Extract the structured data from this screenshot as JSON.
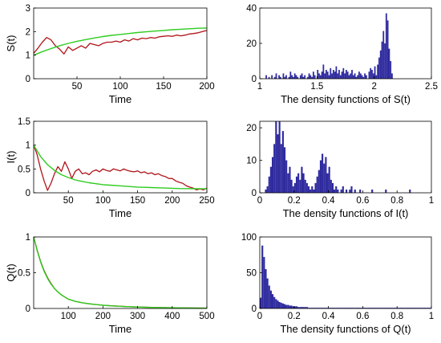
{
  "colors": {
    "path": "#b0141a",
    "mean": "#2fcc1f",
    "bar": "#2e2a9e"
  },
  "chart_data": [
    {
      "type": "line",
      "id": "S-time",
      "xlabel": "Time",
      "ylabel": "S(t)",
      "xlim": [
        0,
        200
      ],
      "ylim": [
        0,
        3
      ],
      "xticks": [
        {
          "v": 50,
          "label": "50"
        },
        {
          "v": 100,
          "label": "100"
        },
        {
          "v": 150,
          "label": "150"
        },
        {
          "v": 200,
          "label": "200"
        }
      ],
      "yticks": [
        {
          "v": 0,
          "label": "0"
        },
        {
          "v": 1,
          "label": "1"
        },
        {
          "v": 2,
          "label": "2"
        },
        {
          "v": 3,
          "label": "3"
        }
      ],
      "series": [
        {
          "role": "stochastic",
          "x": [
            0,
            5,
            10,
            15,
            20,
            25,
            30,
            35,
            40,
            45,
            50,
            55,
            60,
            65,
            70,
            75,
            80,
            85,
            90,
            95,
            100,
            105,
            110,
            115,
            120,
            125,
            130,
            135,
            140,
            145,
            150,
            155,
            160,
            165,
            170,
            175,
            180,
            185,
            190,
            195,
            200
          ],
          "y": [
            1.08,
            1.3,
            1.55,
            1.75,
            1.65,
            1.4,
            1.25,
            1.05,
            1.35,
            1.2,
            1.3,
            1.4,
            1.3,
            1.5,
            1.45,
            1.4,
            1.5,
            1.55,
            1.55,
            1.6,
            1.55,
            1.65,
            1.6,
            1.7,
            1.65,
            1.72,
            1.7,
            1.75,
            1.72,
            1.78,
            1.8,
            1.82,
            1.8,
            1.85,
            1.82,
            1.85,
            1.9,
            1.92,
            1.95,
            2.0,
            2.05
          ]
        },
        {
          "role": "deterministic",
          "x": [
            0,
            10,
            20,
            30,
            40,
            50,
            60,
            70,
            80,
            90,
            100,
            110,
            120,
            130,
            140,
            150,
            160,
            170,
            180,
            190,
            200
          ],
          "y": [
            1.0,
            1.15,
            1.28,
            1.4,
            1.5,
            1.59,
            1.66,
            1.73,
            1.79,
            1.84,
            1.88,
            1.92,
            1.96,
            1.99,
            2.02,
            2.05,
            2.08,
            2.1,
            2.12,
            2.14,
            2.15
          ]
        }
      ]
    },
    {
      "type": "bar",
      "id": "S-density",
      "xlabel": "The density functions of S(t)",
      "xlim": [
        1,
        2.5
      ],
      "ylim": [
        0,
        40
      ],
      "xticks": [
        {
          "v": 1,
          "label": "1"
        },
        {
          "v": 1.5,
          "label": "1.5"
        },
        {
          "v": 2,
          "label": "2"
        },
        {
          "v": 2.5,
          "label": "2.5"
        }
      ],
      "yticks": [
        {
          "v": 0,
          "label": "0"
        },
        {
          "v": 20,
          "label": "20"
        },
        {
          "v": 40,
          "label": "40"
        }
      ],
      "bin_start": 1.05,
      "bin_width": 0.0125,
      "values": [
        2,
        0,
        1,
        0,
        2,
        0,
        1,
        3,
        0,
        2,
        1,
        0,
        3,
        1,
        2,
        0,
        1,
        4,
        2,
        1,
        3,
        2,
        1,
        0,
        2,
        3,
        1,
        2,
        0,
        1,
        3,
        2,
        1,
        4,
        2,
        0,
        5,
        3,
        2,
        4,
        8,
        3,
        5,
        4,
        2,
        6,
        3,
        5,
        4,
        7,
        3,
        5,
        2,
        4,
        6,
        3,
        5,
        4,
        2,
        3,
        5,
        2,
        3,
        1,
        2,
        4,
        3,
        2,
        1,
        3,
        2,
        0,
        4,
        6,
        5,
        3,
        7,
        2,
        8,
        12,
        16,
        21,
        27,
        20,
        37,
        33,
        17,
        10,
        3
      ]
    },
    {
      "type": "line",
      "id": "I-time",
      "xlabel": "Time",
      "ylabel": "I(t)",
      "xlim": [
        0,
        250
      ],
      "ylim": [
        0,
        1.5
      ],
      "xticks": [
        {
          "v": 50,
          "label": "50"
        },
        {
          "v": 100,
          "label": "100"
        },
        {
          "v": 150,
          "label": "150"
        },
        {
          "v": 200,
          "label": "200"
        },
        {
          "v": 250,
          "label": "250"
        }
      ],
      "yticks": [
        {
          "v": 0,
          "label": "0"
        },
        {
          "v": 0.5,
          "label": "0.5"
        },
        {
          "v": 1,
          "label": "1"
        },
        {
          "v": 1.5,
          "label": "1.5"
        }
      ],
      "series": [
        {
          "role": "stochastic",
          "x": [
            0,
            5,
            10,
            15,
            20,
            25,
            30,
            35,
            40,
            45,
            50,
            55,
            60,
            65,
            70,
            75,
            80,
            85,
            90,
            95,
            100,
            105,
            110,
            115,
            120,
            125,
            130,
            135,
            140,
            145,
            150,
            155,
            160,
            165,
            170,
            175,
            180,
            185,
            190,
            195,
            200,
            205,
            210,
            215,
            220,
            225,
            230,
            235,
            240,
            245,
            250
          ],
          "y": [
            1.0,
            0.8,
            0.5,
            0.25,
            0.05,
            0.2,
            0.4,
            0.55,
            0.45,
            0.65,
            0.5,
            0.3,
            0.45,
            0.5,
            0.4,
            0.42,
            0.38,
            0.45,
            0.48,
            0.44,
            0.5,
            0.47,
            0.45,
            0.5,
            0.48,
            0.46,
            0.5,
            0.47,
            0.45,
            0.44,
            0.46,
            0.42,
            0.44,
            0.4,
            0.42,
            0.38,
            0.4,
            0.36,
            0.34,
            0.3,
            0.3,
            0.25,
            0.22,
            0.2,
            0.15,
            0.12,
            0.1,
            0.06,
            0.08,
            0.06,
            0.1
          ]
        },
        {
          "role": "deterministic",
          "x": [
            0,
            10,
            20,
            30,
            40,
            50,
            60,
            70,
            80,
            90,
            100,
            110,
            120,
            130,
            140,
            150,
            160,
            170,
            180,
            190,
            200,
            210,
            220,
            230,
            240,
            250
          ],
          "y": [
            1.0,
            0.76,
            0.59,
            0.47,
            0.38,
            0.32,
            0.27,
            0.24,
            0.21,
            0.19,
            0.17,
            0.16,
            0.15,
            0.14,
            0.13,
            0.12,
            0.115,
            0.11,
            0.105,
            0.1,
            0.095,
            0.09,
            0.088,
            0.086,
            0.084,
            0.082
          ]
        }
      ]
    },
    {
      "type": "bar",
      "id": "I-density",
      "xlabel": "The density functions of I(t)",
      "xlim": [
        0,
        1
      ],
      "ylim": [
        0,
        22
      ],
      "xticks": [
        {
          "v": 0,
          "label": "0"
        },
        {
          "v": 0.2,
          "label": "0.2"
        },
        {
          "v": 0.4,
          "label": "0.4"
        },
        {
          "v": 0.6,
          "label": "0.6"
        },
        {
          "v": 0.8,
          "label": "0.8"
        },
        {
          "v": 1,
          "label": "1"
        }
      ],
      "yticks": [
        {
          "v": 0,
          "label": "0"
        },
        {
          "v": 10,
          "label": "10"
        },
        {
          "v": 20,
          "label": "20"
        }
      ],
      "bin_start": 0.03,
      "bin_width": 0.01,
      "values": [
        1,
        2,
        5,
        8,
        11,
        15,
        22,
        18,
        22,
        15,
        19,
        14,
        10,
        6,
        8,
        4,
        2,
        3,
        5,
        6,
        4,
        8,
        6,
        4,
        3,
        2,
        1,
        2,
        1,
        3,
        5,
        7,
        10,
        12,
        9,
        11,
        6,
        8,
        4,
        3,
        1,
        2,
        1,
        0,
        1,
        2,
        0,
        1,
        0,
        1,
        2,
        0,
        1,
        0,
        0,
        1,
        0,
        0,
        0,
        0,
        0,
        0,
        1,
        0,
        0,
        0,
        0,
        0,
        0,
        0,
        1,
        0,
        0,
        0,
        0,
        0,
        0,
        0,
        0,
        0,
        0,
        0,
        0,
        0,
        1,
        0,
        0,
        0,
        0,
        0,
        0,
        0,
        0,
        0,
        0,
        0,
        0
      ]
    },
    {
      "type": "line",
      "id": "Q-time",
      "xlabel": "Time",
      "ylabel": "Q(t)",
      "xlim": [
        0,
        500
      ],
      "ylim": [
        0,
        1
      ],
      "xticks": [
        {
          "v": 100,
          "label": "100"
        },
        {
          "v": 200,
          "label": "200"
        },
        {
          "v": 300,
          "label": "300"
        },
        {
          "v": 400,
          "label": "400"
        },
        {
          "v": 500,
          "label": "500"
        }
      ],
      "yticks": [
        {
          "v": 0,
          "label": "0"
        },
        {
          "v": 0.5,
          "label": "0.5"
        },
        {
          "v": 1,
          "label": "1"
        }
      ],
      "series": [
        {
          "role": "stochastic",
          "x": [
            0,
            10,
            20,
            30,
            40,
            50,
            60,
            70,
            80,
            90,
            100,
            120,
            140,
            160,
            180,
            200,
            225,
            250,
            275,
            300,
            350,
            400,
            450,
            500
          ],
          "y": [
            1.0,
            0.82,
            0.66,
            0.53,
            0.43,
            0.35,
            0.28,
            0.23,
            0.19,
            0.16,
            0.13,
            0.1,
            0.08,
            0.065,
            0.055,
            0.045,
            0.037,
            0.03,
            0.025,
            0.02,
            0.014,
            0.01,
            0.007,
            0.005
          ]
        },
        {
          "role": "deterministic",
          "x": [
            0,
            10,
            20,
            30,
            40,
            50,
            60,
            70,
            80,
            90,
            100,
            120,
            140,
            160,
            180,
            200,
            225,
            250,
            275,
            300,
            350,
            400,
            450,
            500
          ],
          "y": [
            1.0,
            0.81,
            0.65,
            0.52,
            0.42,
            0.34,
            0.28,
            0.23,
            0.19,
            0.16,
            0.13,
            0.1,
            0.08,
            0.065,
            0.054,
            0.045,
            0.036,
            0.03,
            0.025,
            0.02,
            0.014,
            0.01,
            0.007,
            0.005
          ]
        }
      ]
    },
    {
      "type": "bar",
      "id": "Q-density",
      "xlabel": "The density functions of Q(t)",
      "xlim": [
        0,
        1
      ],
      "ylim": [
        0,
        100
      ],
      "xticks": [
        {
          "v": 0,
          "label": "0"
        },
        {
          "v": 0.2,
          "label": "0.2"
        },
        {
          "v": 0.4,
          "label": "0.4"
        },
        {
          "v": 0.6,
          "label": "0.6"
        },
        {
          "v": 0.8,
          "label": "0.8"
        },
        {
          "v": 1,
          "label": "1"
        }
      ],
      "yticks": [
        {
          "v": 0,
          "label": "0"
        },
        {
          "v": 50,
          "label": "50"
        },
        {
          "v": 100,
          "label": "100"
        }
      ],
      "bin_start": 0.0,
      "bin_width": 0.01,
      "values": [
        15,
        88,
        72,
        55,
        42,
        32,
        25,
        20,
        16,
        13,
        11,
        9,
        8,
        7,
        6,
        5,
        5,
        4,
        4,
        3,
        3,
        3,
        2,
        2,
        2,
        2,
        2,
        2,
        1,
        1,
        1,
        1,
        1,
        1,
        1,
        1,
        1,
        1,
        1,
        1,
        1,
        1,
        1,
        1,
        1,
        1,
        1,
        1,
        1,
        1,
        1,
        1,
        1,
        1,
        1,
        1,
        1,
        1,
        1,
        1,
        1,
        1,
        1,
        1,
        1,
        1,
        1,
        1,
        1,
        1,
        1,
        1,
        1,
        1,
        1,
        1,
        1,
        1,
        1,
        1,
        1,
        1,
        1,
        1,
        1,
        1,
        1,
        1,
        1,
        1,
        1,
        1,
        1,
        1,
        1,
        1,
        1,
        1,
        1,
        1
      ]
    }
  ]
}
